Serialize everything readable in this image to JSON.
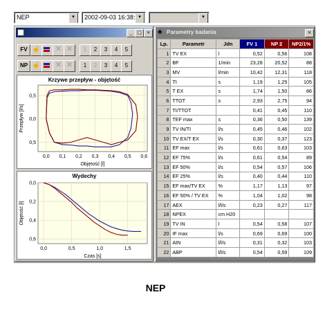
{
  "toolbar": {
    "patient_combo": "NEP",
    "date_combo": "2002-09-03   16:38:57",
    "empty_combo": ""
  },
  "left_window": {
    "title": "",
    "row_fv_label": "FV",
    "row_np_label": "NP",
    "fv_numbers": [
      "1",
      "2",
      "3",
      "4",
      "5"
    ],
    "np_numbers": [
      "1",
      "2",
      "3",
      "4",
      "5"
    ],
    "top_chart_title": "Krzywe przepływ - objętość",
    "bottom_chart_title": "Wydechy"
  },
  "right_window": {
    "title": "Parametry badania",
    "columns": [
      "Lp.",
      "Parametr",
      "Jdn",
      "FV 1",
      "NP 2",
      "NP2/1%"
    ],
    "rows": [
      [
        "1",
        "TV EX",
        "l",
        "0,52",
        "0,56",
        "108"
      ],
      [
        "2",
        "BF",
        "1/min",
        "23,28",
        "20,52",
        "88"
      ],
      [
        "3",
        "MV",
        "l/min",
        "10,42",
        "12,31",
        "118"
      ],
      [
        "4",
        "TI",
        "s",
        "1,19",
        "1,25",
        "105"
      ],
      [
        "5",
        "T EX",
        "s",
        "1,74",
        "1,50",
        "86"
      ],
      [
        "6",
        "TTOT",
        "s",
        "2,93",
        "2,75",
        "94"
      ],
      [
        "7",
        "TI/TTOT",
        "",
        "0,41",
        "0,45",
        "110"
      ],
      [
        "8",
        "TEF max",
        "s",
        "0,36",
        "0,50",
        "139"
      ],
      [
        "9",
        "TV IN/TI",
        "l/s",
        "0,45",
        "0,46",
        "102"
      ],
      [
        "10",
        "TV EX/T EX",
        "l/s",
        "0,30",
        "0,37",
        "123"
      ],
      [
        "11",
        "EF max",
        "l/s",
        "0,61",
        "0,63",
        "103"
      ],
      [
        "12",
        "EF 75%",
        "l/s",
        "0,61",
        "0,54",
        "89"
      ],
      [
        "13",
        "EF 50%",
        "l/s",
        "0,54",
        "0,57",
        "106"
      ],
      [
        "14",
        "EF 25%",
        "l/s",
        "0,40",
        "0,44",
        "110"
      ],
      [
        "15",
        "EF max/TV EX",
        "%",
        "1,17",
        "1,13",
        "97"
      ],
      [
        "16",
        "EF 50% / TV EX",
        "%",
        "1,04",
        "1,02",
        "98"
      ],
      [
        "17",
        "AEX",
        "l/l/s",
        "0,23",
        "0,27",
        "117"
      ],
      [
        "18",
        "NPEX",
        "cm H20",
        "",
        "",
        ""
      ],
      [
        "19",
        "TV IN",
        "l",
        "0,54",
        "0,58",
        "107"
      ],
      [
        "20",
        "IF max",
        "l/s",
        "0,69",
        "0,69",
        "100"
      ],
      [
        "21",
        "AIN",
        "l/l/s",
        "0,31",
        "0,32",
        "103"
      ],
      [
        "22",
        "ABP",
        "l/l/s",
        "0,54",
        "0,59",
        "109"
      ]
    ]
  },
  "caption": "NEP",
  "colors": {
    "fv_series": "#1a1aa0",
    "np_series": "#8b0000",
    "header_fv": "#000080",
    "header_np": "#800000",
    "plot_bg": "#ffffe8"
  },
  "chart_data": [
    {
      "type": "line",
      "title": "Krzywe przepływ - objętość",
      "xlabel": "Objętość [l]",
      "ylabel": "Przepływ [l/s]",
      "xticks": [
        "0,0",
        "0,1",
        "0,2",
        "0,3",
        "0,4",
        "0,5",
        "0,6"
      ],
      "yticks": [
        "0,5",
        "0,0",
        "0,5"
      ],
      "xlim": [
        -0.05,
        0.62
      ],
      "ylim": [
        -0.7,
        0.72
      ],
      "series": [
        {
          "name": "FV 1",
          "color": "#1a1aa0",
          "x": [
            0.0,
            0.005,
            0.02,
            0.05,
            0.1,
            0.15,
            0.2,
            0.25,
            0.3,
            0.35,
            0.4,
            0.45,
            0.5,
            0.52,
            0.53,
            0.52,
            0.5,
            0.45,
            0.4,
            0.35,
            0.3,
            0.25,
            0.2,
            0.15,
            0.1,
            0.05,
            0.02,
            0.0
          ],
          "y": [
            0.0,
            0.45,
            0.55,
            0.58,
            0.59,
            0.6,
            0.6,
            0.61,
            0.61,
            0.6,
            0.59,
            0.56,
            0.5,
            0.35,
            0.1,
            -0.2,
            -0.4,
            -0.55,
            -0.6,
            -0.6,
            -0.6,
            -0.58,
            -0.58,
            -0.56,
            -0.55,
            -0.5,
            -0.3,
            0.0
          ]
        },
        {
          "name": "NP 2",
          "color": "#8b0000",
          "x": [
            0.0,
            0.005,
            0.02,
            0.05,
            0.1,
            0.15,
            0.2,
            0.25,
            0.3,
            0.35,
            0.4,
            0.45,
            0.5,
            0.55,
            0.56,
            0.55,
            0.5,
            0.45,
            0.4,
            0.35,
            0.3,
            0.25,
            0.2,
            0.15,
            0.1,
            0.05,
            0.02,
            0.0
          ],
          "y": [
            0.0,
            0.5,
            0.6,
            0.62,
            0.62,
            0.63,
            0.63,
            0.62,
            0.62,
            0.61,
            0.6,
            0.58,
            0.52,
            0.3,
            0.05,
            -0.25,
            -0.45,
            -0.5,
            -0.55,
            -0.5,
            -0.45,
            -0.4,
            -0.45,
            -0.5,
            -0.52,
            -0.5,
            -0.3,
            0.0
          ]
        }
      ]
    },
    {
      "type": "line",
      "title": "Wydechy",
      "xlabel": "Czas [s]",
      "ylabel": "Objętość [l]",
      "xticks": [
        "0,0",
        "0,5",
        "1,0",
        "1,5"
      ],
      "yticks": [
        "0,0",
        "0,2",
        "0,4",
        "0,6"
      ],
      "xlim": [
        -0.1,
        1.85
      ],
      "ylim": [
        0.0,
        0.65
      ],
      "y_inverted": true,
      "series": [
        {
          "name": "FV 1",
          "color": "#1a1aa0",
          "x": [
            0.0,
            0.1,
            0.2,
            0.3,
            0.4,
            0.5,
            0.6,
            0.7,
            0.8,
            0.9,
            1.0,
            1.1,
            1.2,
            1.3,
            1.4,
            1.5,
            1.6,
            1.74
          ],
          "y": [
            0.0,
            0.02,
            0.05,
            0.09,
            0.13,
            0.18,
            0.23,
            0.28,
            0.33,
            0.37,
            0.41,
            0.44,
            0.47,
            0.49,
            0.505,
            0.515,
            0.52,
            0.52
          ]
        },
        {
          "name": "NP 2",
          "color": "#8b0000",
          "x": [
            0.0,
            0.1,
            0.2,
            0.3,
            0.4,
            0.5,
            0.6,
            0.7,
            0.8,
            0.9,
            1.0,
            1.1,
            1.2,
            1.3,
            1.4,
            1.5
          ],
          "y": [
            0.0,
            0.02,
            0.06,
            0.11,
            0.16,
            0.21,
            0.27,
            0.32,
            0.37,
            0.42,
            0.46,
            0.5,
            0.53,
            0.55,
            0.56,
            0.56
          ]
        }
      ]
    }
  ]
}
